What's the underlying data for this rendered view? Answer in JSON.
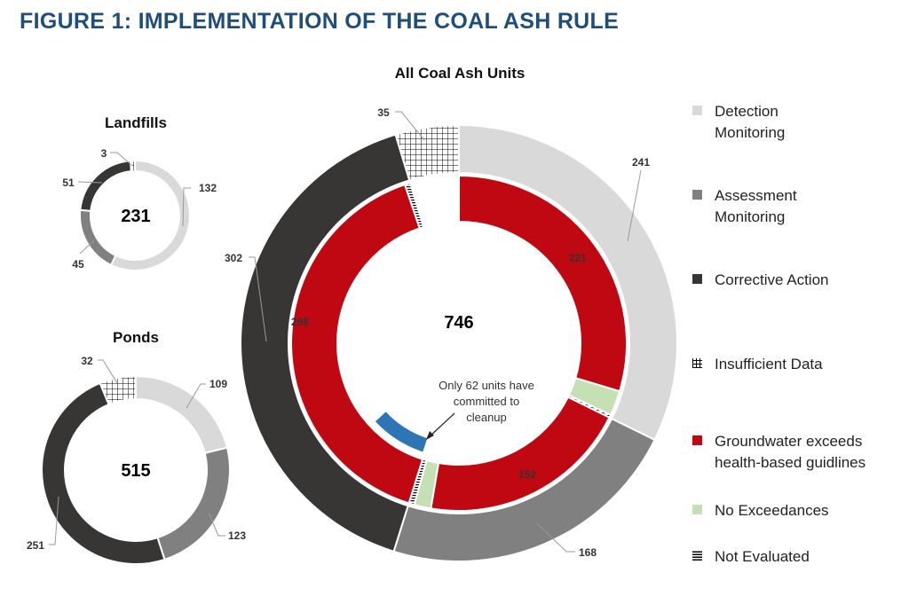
{
  "title": "FIGURE 1: IMPLEMENTATION OF THE COAL ASH RULE",
  "chart_data": [
    {
      "type": "pie",
      "title": "Landfills",
      "total": "231",
      "categories": [
        "Detection Monitoring",
        "Assessment Monitoring",
        "Corrective Action",
        "Insufficient Data"
      ],
      "values": [
        132,
        45,
        51,
        3
      ]
    },
    {
      "type": "pie",
      "title": "Ponds",
      "total": "515",
      "categories": [
        "Detection Monitoring",
        "Assessment Monitoring",
        "Corrective Action",
        "Insufficient Data"
      ],
      "values": [
        109,
        123,
        251,
        32
      ]
    },
    {
      "type": "pie",
      "title": "All Coal Ash Units",
      "total": "746",
      "outer": {
        "categories": [
          "Detection Monitoring",
          "Assessment Monitoring",
          "Corrective Action",
          "Insufficient Data"
        ],
        "values": [
          241,
          168,
          302,
          35
        ]
      },
      "inner": {
        "categories": [
          "Groundwater exceeds",
          "No Exceedances",
          "Not Evaluated",
          "Groundwater exceeds",
          "No Exceedances",
          "Not Evaluated",
          "Groundwater exceeds",
          "Not Evaluated",
          "Insufficient Data"
        ],
        "values": [
          221,
          18,
          2,
          152,
          12,
          4,
          298,
          4,
          35
        ],
        "labels": [
          "221",
          "",
          "",
          "152",
          "",
          "",
          "298",
          "",
          ""
        ]
      },
      "highlight": {
        "value": 62,
        "annotation": "Only 62 units have committed to cleanup",
        "color": "#2e75b6"
      }
    }
  ],
  "legend": [
    {
      "label": "Detection Monitoring",
      "color": "#d9d9d9"
    },
    {
      "label": "Assessment Monitoring",
      "color": "#808080"
    },
    {
      "label": "Corrective Action",
      "color": "#383634"
    },
    {
      "label": "Insufficient Data",
      "color": "pattern-crosshatch"
    },
    {
      "label": "Groundwater exceeds health-based guidlines",
      "color": "#c00812"
    },
    {
      "label": "No Exceedances",
      "color": "#c5e0b4"
    },
    {
      "label": "Not Evaluated",
      "color": "pattern-stripes"
    }
  ],
  "colors": {
    "detection": "#d9d9d9",
    "assessment": "#808080",
    "corrective": "#383634",
    "exceed": "#c00812",
    "none": "#c5e0b4",
    "title": "#1f4e7a"
  }
}
